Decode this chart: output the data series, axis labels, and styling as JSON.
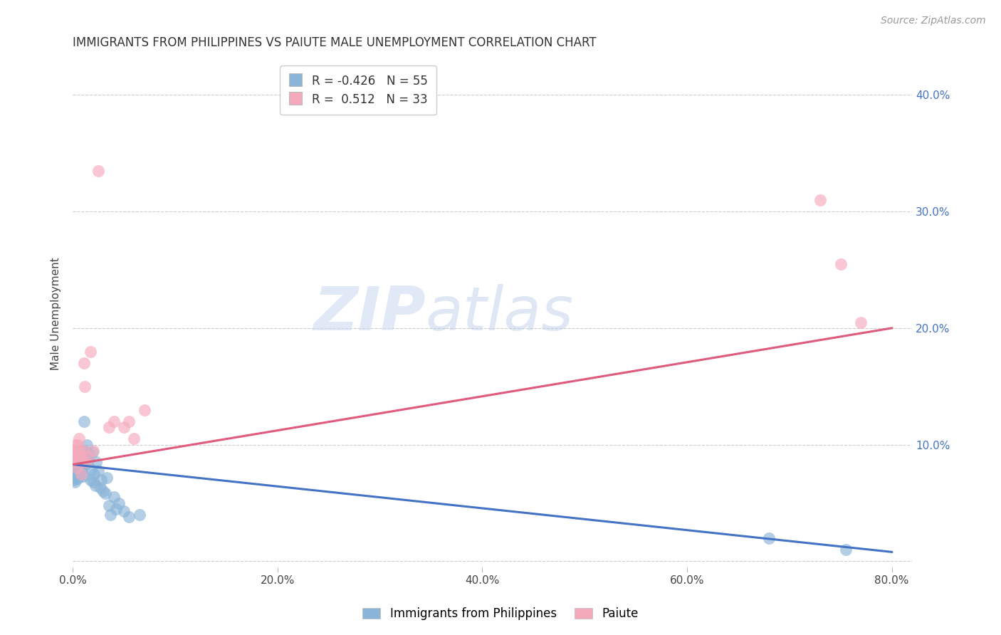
{
  "title": "IMMIGRANTS FROM PHILIPPINES VS PAIUTE MALE UNEMPLOYMENT CORRELATION CHART",
  "source": "Source: ZipAtlas.com",
  "ylabel": "Male Unemployment",
  "xlim": [
    0.0,
    0.82
  ],
  "ylim": [
    -0.005,
    0.43
  ],
  "yticks": [
    0.0,
    0.1,
    0.2,
    0.3,
    0.4
  ],
  "xticks": [
    0.0,
    0.2,
    0.4,
    0.6,
    0.8
  ],
  "xtick_labels": [
    "0.0%",
    "20.0%",
    "40.0%",
    "60.0%",
    "80.0%"
  ],
  "ytick_labels": [
    "",
    "10.0%",
    "20.0%",
    "30.0%",
    "40.0%"
  ],
  "blue_color": "#8ab4d8",
  "pink_color": "#f5aabc",
  "blue_line_color": "#4472c4",
  "pink_line_color": "#e05a7a",
  "background_color": "#ffffff",
  "grid_color": "#cccccc",
  "watermark_zip": "ZIP",
  "watermark_atlas": "atlas",
  "title_fontsize": 12,
  "axis_label_fontsize": 11,
  "tick_fontsize": 11,
  "legend_fontsize": 12,
  "source_fontsize": 10,
  "blue_scatter_x": [
    0.001,
    0.001,
    0.002,
    0.002,
    0.002,
    0.003,
    0.003,
    0.003,
    0.004,
    0.004,
    0.004,
    0.005,
    0.005,
    0.005,
    0.006,
    0.006,
    0.006,
    0.007,
    0.007,
    0.008,
    0.008,
    0.009,
    0.009,
    0.01,
    0.01,
    0.011,
    0.012,
    0.012,
    0.013,
    0.014,
    0.015,
    0.016,
    0.017,
    0.018,
    0.019,
    0.02,
    0.021,
    0.022,
    0.023,
    0.025,
    0.027,
    0.028,
    0.03,
    0.032,
    0.033,
    0.035,
    0.037,
    0.04,
    0.042,
    0.045,
    0.05,
    0.055,
    0.065,
    0.68,
    0.755
  ],
  "blue_scatter_y": [
    0.075,
    0.07,
    0.072,
    0.068,
    0.08,
    0.076,
    0.082,
    0.078,
    0.074,
    0.079,
    0.085,
    0.071,
    0.08,
    0.086,
    0.073,
    0.083,
    0.078,
    0.088,
    0.092,
    0.085,
    0.09,
    0.08,
    0.076,
    0.095,
    0.073,
    0.12,
    0.088,
    0.083,
    0.091,
    0.1,
    0.087,
    0.092,
    0.07,
    0.079,
    0.094,
    0.068,
    0.075,
    0.065,
    0.085,
    0.078,
    0.063,
    0.07,
    0.06,
    0.058,
    0.072,
    0.048,
    0.04,
    0.055,
    0.045,
    0.05,
    0.043,
    0.038,
    0.04,
    0.02,
    0.01
  ],
  "pink_scatter_x": [
    0.001,
    0.001,
    0.002,
    0.002,
    0.003,
    0.003,
    0.004,
    0.004,
    0.005,
    0.005,
    0.006,
    0.007,
    0.007,
    0.008,
    0.008,
    0.009,
    0.01,
    0.011,
    0.012,
    0.013,
    0.015,
    0.017,
    0.02,
    0.025,
    0.035,
    0.04,
    0.05,
    0.055,
    0.06,
    0.07,
    0.73,
    0.75,
    0.77
  ],
  "pink_scatter_y": [
    0.095,
    0.09,
    0.1,
    0.085,
    0.088,
    0.095,
    0.093,
    0.08,
    0.1,
    0.092,
    0.105,
    0.088,
    0.095,
    0.085,
    0.075,
    0.09,
    0.095,
    0.17,
    0.15,
    0.085,
    0.09,
    0.18,
    0.095,
    0.335,
    0.115,
    0.12,
    0.115,
    0.12,
    0.105,
    0.13,
    0.31,
    0.255,
    0.205
  ],
  "blue_line_x0": 0.0,
  "blue_line_y0": 0.083,
  "blue_line_x1": 0.8,
  "blue_line_y1": 0.008,
  "pink_line_x0": 0.0,
  "pink_line_y0": 0.083,
  "pink_line_x1": 0.8,
  "pink_line_y1": 0.2
}
